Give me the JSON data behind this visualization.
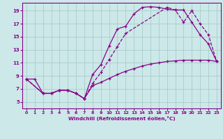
{
  "background_color": "#cce8e8",
  "grid_color": "#aacccc",
  "line_color": "#880088",
  "marker": "+",
  "xlabel": "Windchill (Refroidissement éolien,°C)",
  "xlim": [
    -0.5,
    23.5
  ],
  "ylim": [
    4.0,
    20.2
  ],
  "yticks": [
    5,
    7,
    9,
    11,
    13,
    15,
    17,
    19
  ],
  "xticks": [
    0,
    1,
    2,
    3,
    4,
    5,
    6,
    7,
    8,
    9,
    10,
    11,
    12,
    13,
    14,
    15,
    16,
    17,
    18,
    19,
    20,
    21,
    22,
    23
  ],
  "series1_x": [
    0,
    1,
    2,
    3,
    4,
    5,
    6,
    7,
    8,
    9,
    10,
    11,
    12,
    13,
    14,
    15,
    16,
    17,
    18,
    19,
    20,
    21,
    22,
    23
  ],
  "series1_y": [
    8.5,
    8.5,
    6.3,
    6.3,
    6.8,
    6.8,
    6.3,
    5.5,
    9.2,
    10.7,
    13.6,
    16.2,
    16.6,
    18.5,
    19.5,
    19.6,
    19.5,
    19.2,
    19.1,
    19.1,
    17.2,
    15.3,
    13.9,
    11.2
  ],
  "series2_x": [
    0,
    2,
    3,
    4,
    5,
    6,
    7,
    8,
    9,
    10,
    11,
    12,
    17,
    18,
    19,
    20,
    21,
    22,
    23
  ],
  "series2_y": [
    8.5,
    6.3,
    6.3,
    6.8,
    6.8,
    6.3,
    5.5,
    7.8,
    9.5,
    11.5,
    13.5,
    15.5,
    19.5,
    19.1,
    17.2,
    19.0,
    17.0,
    15.3,
    11.2
  ],
  "series3_x": [
    0,
    2,
    3,
    4,
    5,
    6,
    7,
    8,
    9,
    10,
    11,
    12,
    13,
    14,
    15,
    16,
    17,
    18,
    19,
    20,
    21,
    22,
    23
  ],
  "series3_y": [
    8.5,
    6.3,
    6.3,
    6.8,
    6.8,
    6.3,
    5.5,
    7.5,
    8.0,
    8.6,
    9.2,
    9.7,
    10.1,
    10.5,
    10.8,
    11.0,
    11.2,
    11.3,
    11.4,
    11.4,
    11.4,
    11.4,
    11.2
  ]
}
